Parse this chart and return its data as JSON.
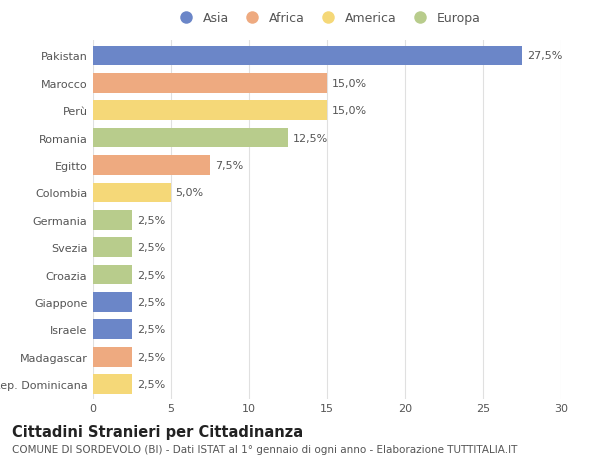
{
  "categories": [
    "Pakistan",
    "Marocco",
    "Perù",
    "Romania",
    "Egitto",
    "Colombia",
    "Germania",
    "Svezia",
    "Croazia",
    "Giappone",
    "Israele",
    "Madagascar",
    "Rep. Dominicana"
  ],
  "values": [
    27.5,
    15.0,
    15.0,
    12.5,
    7.5,
    5.0,
    2.5,
    2.5,
    2.5,
    2.5,
    2.5,
    2.5,
    2.5
  ],
  "labels": [
    "27,5%",
    "15,0%",
    "15,0%",
    "12,5%",
    "7,5%",
    "5,0%",
    "2,5%",
    "2,5%",
    "2,5%",
    "2,5%",
    "2,5%",
    "2,5%",
    "2,5%"
  ],
  "continents": [
    "Asia",
    "Africa",
    "America",
    "Europa",
    "Africa",
    "America",
    "Europa",
    "Europa",
    "Europa",
    "Asia",
    "Asia",
    "Africa",
    "America"
  ],
  "colors": {
    "Asia": "#6b86c8",
    "Africa": "#eeaa80",
    "America": "#f5d878",
    "Europa": "#b8cc8c"
  },
  "legend_order": [
    "Asia",
    "Africa",
    "America",
    "Europa"
  ],
  "title": "Cittadini Stranieri per Cittadinanza",
  "subtitle": "COMUNE DI SORDEVOLO (BI) - Dati ISTAT al 1° gennaio di ogni anno - Elaborazione TUTTITALIA.IT",
  "xlim": [
    0,
    30
  ],
  "xticks": [
    0,
    5,
    10,
    15,
    20,
    25,
    30
  ],
  "background_color": "#ffffff",
  "grid_color": "#e0e0e0",
  "bar_height": 0.72,
  "title_fontsize": 10.5,
  "subtitle_fontsize": 7.5,
  "label_fontsize": 8,
  "tick_fontsize": 8,
  "legend_fontsize": 9
}
